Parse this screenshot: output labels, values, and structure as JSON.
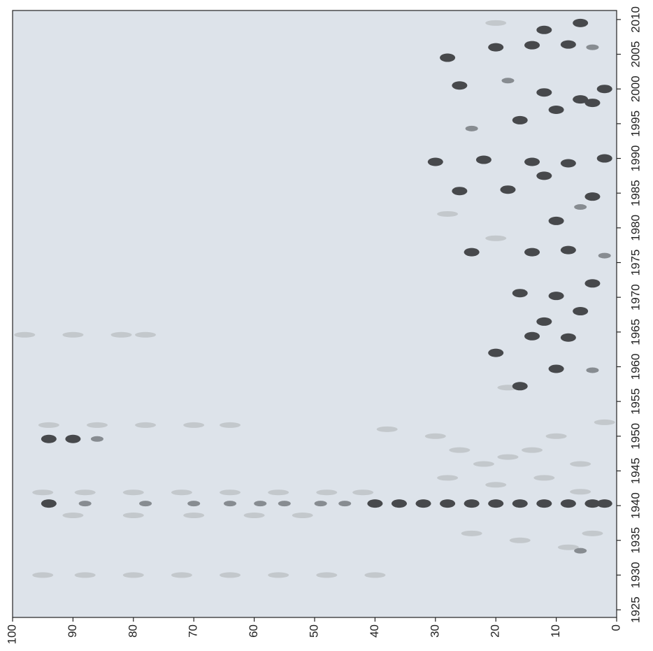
{
  "chart_data": {
    "type": "contour",
    "xlim": [
      100,
      0
    ],
    "xticks": [
      0,
      10,
      20,
      30,
      40,
      50,
      60,
      70,
      80,
      90,
      100
    ],
    "ylim": [
      1923.9,
      2011.3
    ],
    "yticks": [
      1925,
      1930,
      1935,
      1940,
      1945,
      1950,
      1955,
      1960,
      1965,
      1970,
      1975,
      1980,
      1985,
      1990,
      1995,
      2000,
      2005,
      2010
    ],
    "background": "#dde3ea",
    "colors": [
      "#c3c8cc",
      "#878c91",
      "#47494c"
    ],
    "x": [
      40,
      36,
      32,
      28,
      24,
      20,
      16,
      12,
      8,
      4,
      2,
      94,
      88,
      78,
      70,
      64,
      59,
      55,
      49,
      45,
      95,
      88,
      80,
      72,
      64,
      56,
      48,
      42,
      90,
      80,
      70,
      60,
      52,
      95,
      88,
      80,
      72,
      64,
      56,
      48,
      40,
      94,
      86,
      78,
      70,
      64,
      94,
      90,
      86,
      98,
      90,
      82,
      78,
      38,
      30,
      26,
      22,
      18,
      14,
      10,
      6,
      2,
      28,
      20,
      12,
      6,
      24,
      16,
      8,
      4,
      6,
      18,
      16,
      10,
      4,
      14,
      8,
      20,
      12,
      6,
      16,
      10,
      4,
      24,
      14,
      8,
      2,
      28,
      20,
      10,
      6,
      26,
      18,
      12,
      4,
      30,
      22,
      14,
      8,
      2,
      24,
      16,
      10,
      4,
      26,
      18,
      12,
      6,
      2,
      28,
      20,
      14,
      8,
      4,
      6,
      12,
      20
    ],
    "y": [
      1940.3,
      1940.3,
      1940.3,
      1940.3,
      1940.3,
      1940.3,
      1940.3,
      1940.3,
      1940.3,
      1940.3,
      1940.3,
      1940.3,
      1940.3,
      1940.3,
      1940.3,
      1940.3,
      1940.3,
      1940.3,
      1940.3,
      1940.3,
      1941.9,
      1941.9,
      1941.9,
      1941.9,
      1941.9,
      1941.9,
      1941.9,
      1941.9,
      1938.6,
      1938.6,
      1938.6,
      1938.6,
      1938.6,
      1930,
      1930,
      1930,
      1930,
      1930,
      1930,
      1930,
      1930,
      1951.6,
      1951.6,
      1951.6,
      1951.6,
      1951.6,
      1949.6,
      1949.6,
      1949.6,
      1964.6,
      1964.6,
      1964.6,
      1964.6,
      1951,
      1950,
      1948,
      1946,
      1947,
      1948,
      1950,
      1946,
      1952,
      1944,
      1943,
      1944,
      1942,
      1936,
      1935,
      1934,
      1936,
      1933.5,
      1957,
      1957.2,
      1959.7,
      1959.5,
      1964.4,
      1964.2,
      1962,
      1966.5,
      1968,
      1970.6,
      1970.2,
      1972,
      1976.5,
      1976.5,
      1976.8,
      1976,
      1982,
      1978.5,
      1981,
      1983,
      1985.3,
      1985.5,
      1987.5,
      1984.5,
      1989.5,
      1989.8,
      1989.5,
      1989.3,
      1990,
      1994.3,
      1995.5,
      1997,
      1998,
      2000.5,
      2001.2,
      1999.5,
      1998.5,
      2000,
      2004.5,
      2006,
      2006.3,
      2006.4,
      2006,
      2009.5,
      2008.5,
      2009.5
    ],
    "values": [
      3,
      3,
      3,
      3,
      3,
      3,
      3,
      3,
      3,
      3,
      3,
      3,
      2,
      2,
      2,
      2,
      2,
      2,
      2,
      2,
      1,
      1,
      1,
      1,
      1,
      1,
      1,
      1,
      1,
      1,
      1,
      1,
      1,
      1,
      1,
      1,
      1,
      1,
      1,
      1,
      1,
      1,
      1,
      1,
      1,
      1,
      3,
      3,
      2,
      1,
      1,
      1,
      1,
      1,
      1,
      1,
      1,
      1,
      1,
      1,
      1,
      1,
      1,
      1,
      1,
      1,
      1,
      1,
      1,
      1,
      2,
      1,
      3,
      3,
      2,
      3,
      3,
      3,
      3,
      3,
      3,
      3,
      3,
      3,
      3,
      3,
      2,
      1,
      1,
      3,
      2,
      3,
      3,
      3,
      3,
      3,
      3,
      3,
      3,
      3,
      2,
      3,
      3,
      3,
      3,
      2,
      3,
      3,
      3,
      3,
      3,
      3,
      3,
      2,
      3,
      3,
      1
    ]
  }
}
